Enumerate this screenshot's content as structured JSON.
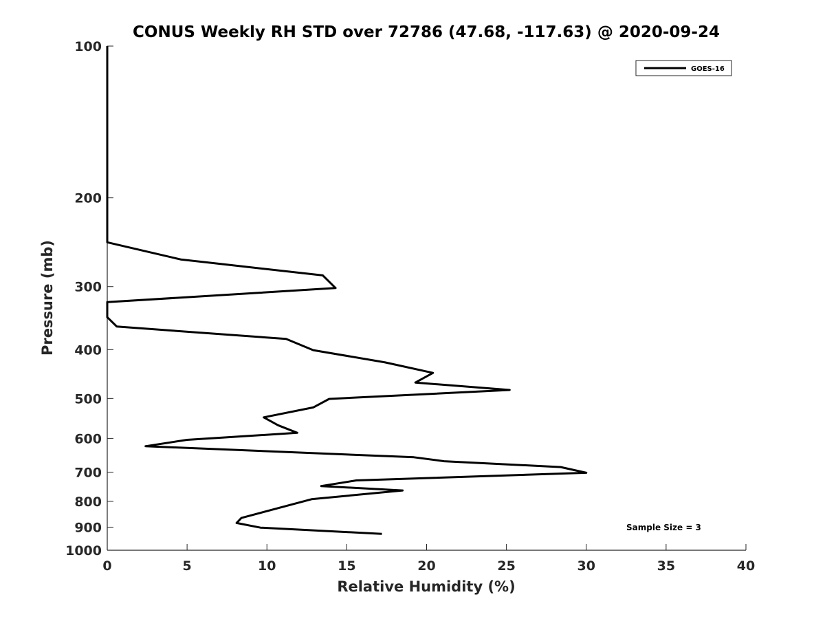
{
  "chart_data": {
    "type": "line",
    "title": "CONUS Weekly RH STD over 72786 (47.68, -117.63) @ 2020-09-24",
    "xlabel": "Relative Humidity (%)",
    "ylabel": "Pressure (mb)",
    "xlim": [
      0,
      40
    ],
    "ylim": [
      1000,
      100
    ],
    "yscale": "log",
    "xticks": [
      0,
      5,
      10,
      15,
      20,
      25,
      30,
      35,
      40
    ],
    "yticks": [
      100,
      200,
      300,
      400,
      500,
      600,
      700,
      800,
      900,
      1000
    ],
    "legend": {
      "position": "top-right",
      "entries": [
        "GOES-16"
      ]
    },
    "annotation": "Sample Size = 3",
    "series": [
      {
        "name": "GOES-16",
        "color": "#000000",
        "rh": [
          0,
          0,
          0,
          0,
          4.6,
          13.5,
          14.3,
          0,
          0,
          0.6,
          11.2,
          12.9,
          17.4,
          20.4,
          19.3,
          25.2,
          13.9,
          12.9,
          9.8,
          10.7,
          11.9,
          5.0,
          2.4,
          19.2,
          21.1,
          28.4,
          30.0,
          15.6,
          13.4,
          18.5,
          12.8,
          8.4,
          8.1,
          9.6,
          17.2
        ],
        "pressure": [
          100,
          150,
          200,
          245,
          265,
          285,
          302,
          322,
          345,
          360,
          381,
          401,
          424,
          445,
          465,
          481,
          501,
          521,
          545,
          565,
          585,
          604,
          622,
          654,
          666,
          684,
          702,
          727,
          746,
          761,
          792,
          863,
          883,
          902,
          928
        ]
      }
    ]
  }
}
